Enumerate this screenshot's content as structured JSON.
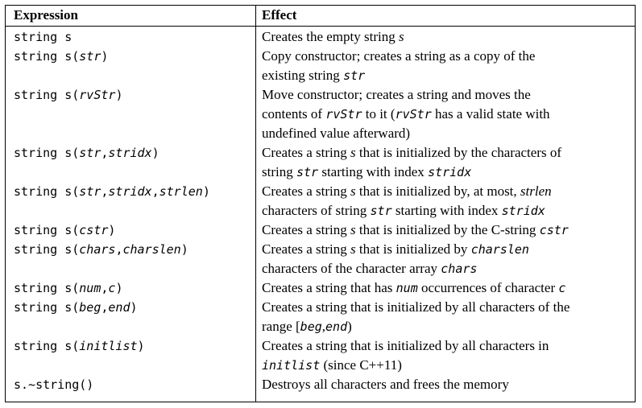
{
  "table": {
    "headers": {
      "expression": "Expression",
      "effect": "Effect"
    },
    "rows": [
      {
        "expression": [
          {
            "t": "string s",
            "s": "m"
          }
        ],
        "effect": [
          [
            {
              "t": "Creates the empty string ",
              "s": "r"
            },
            {
              "t": "s",
              "s": "i"
            }
          ]
        ]
      },
      {
        "expression": [
          {
            "t": "string s(",
            "s": "m"
          },
          {
            "t": "str",
            "s": "mi"
          },
          {
            "t": ")",
            "s": "m"
          }
        ],
        "effect": [
          [
            {
              "t": "Copy constructor; creates a string as a copy of the",
              "s": "r"
            }
          ],
          [
            {
              "t": "existing string ",
              "s": "r"
            },
            {
              "t": "str",
              "s": "mi"
            }
          ]
        ]
      },
      {
        "expression": [
          {
            "t": "string s(",
            "s": "m"
          },
          {
            "t": "rvStr",
            "s": "mi"
          },
          {
            "t": ")",
            "s": "m"
          }
        ],
        "effect": [
          [
            {
              "t": "Move constructor; creates a string and moves the",
              "s": "r"
            }
          ],
          [
            {
              "t": "contents of ",
              "s": "r"
            },
            {
              "t": "rvStr",
              "s": "mi"
            },
            {
              "t": " to it (",
              "s": "r"
            },
            {
              "t": "rvStr",
              "s": "mi"
            },
            {
              "t": " has a valid state with",
              "s": "r"
            }
          ],
          [
            {
              "t": "undefined value afterward)",
              "s": "r"
            }
          ]
        ]
      },
      {
        "expression": [
          {
            "t": "string s(",
            "s": "m"
          },
          {
            "t": "str",
            "s": "mi"
          },
          {
            "t": ",",
            "s": "m"
          },
          {
            "t": "stridx",
            "s": "mi"
          },
          {
            "t": ")",
            "s": "m"
          }
        ],
        "effect": [
          [
            {
              "t": "Creates a string ",
              "s": "r"
            },
            {
              "t": "s",
              "s": "i"
            },
            {
              "t": " that is initialized by the characters of",
              "s": "r"
            }
          ],
          [
            {
              "t": "string ",
              "s": "r"
            },
            {
              "t": "str",
              "s": "mi"
            },
            {
              "t": " starting with index ",
              "s": "r"
            },
            {
              "t": "stridx",
              "s": "mi"
            }
          ]
        ]
      },
      {
        "expression": [
          {
            "t": "string s(",
            "s": "m"
          },
          {
            "t": "str",
            "s": "mi"
          },
          {
            "t": ",",
            "s": "m"
          },
          {
            "t": "stridx",
            "s": "mi"
          },
          {
            "t": ",",
            "s": "m"
          },
          {
            "t": "strlen",
            "s": "mi"
          },
          {
            "t": ")",
            "s": "m"
          }
        ],
        "effect": [
          [
            {
              "t": "Creates a string ",
              "s": "r"
            },
            {
              "t": "s",
              "s": "i"
            },
            {
              "t": " that is initialized by, at most, ",
              "s": "r"
            },
            {
              "t": "strlen",
              "s": "i"
            }
          ],
          [
            {
              "t": "characters of string ",
              "s": "r"
            },
            {
              "t": "str",
              "s": "mi"
            },
            {
              "t": " starting with index ",
              "s": "r"
            },
            {
              "t": "stridx",
              "s": "mi"
            }
          ]
        ]
      },
      {
        "expression": [
          {
            "t": "string s(",
            "s": "m"
          },
          {
            "t": "cstr",
            "s": "mi"
          },
          {
            "t": ")",
            "s": "m"
          }
        ],
        "effect": [
          [
            {
              "t": "Creates a string ",
              "s": "r"
            },
            {
              "t": "s",
              "s": "i"
            },
            {
              "t": " that is initialized by the C-string ",
              "s": "r"
            },
            {
              "t": "cstr",
              "s": "mi"
            }
          ]
        ]
      },
      {
        "expression": [
          {
            "t": "string s(",
            "s": "m"
          },
          {
            "t": "chars",
            "s": "mi"
          },
          {
            "t": ",",
            "s": "m"
          },
          {
            "t": "charslen",
            "s": "mi"
          },
          {
            "t": ")",
            "s": "m"
          }
        ],
        "effect": [
          [
            {
              "t": "Creates a string ",
              "s": "r"
            },
            {
              "t": "s",
              "s": "i"
            },
            {
              "t": " that is initialized by ",
              "s": "r"
            },
            {
              "t": "charslen",
              "s": "mi"
            }
          ],
          [
            {
              "t": "characters of the character array ",
              "s": "r"
            },
            {
              "t": "chars",
              "s": "mi"
            }
          ]
        ]
      },
      {
        "expression": [
          {
            "t": "string s(",
            "s": "m"
          },
          {
            "t": "num",
            "s": "mi"
          },
          {
            "t": ",",
            "s": "m"
          },
          {
            "t": "c",
            "s": "mi"
          },
          {
            "t": ")",
            "s": "m"
          }
        ],
        "effect": [
          [
            {
              "t": "Creates a string that has ",
              "s": "r"
            },
            {
              "t": "num",
              "s": "mi"
            },
            {
              "t": " occurrences of character ",
              "s": "r"
            },
            {
              "t": "c",
              "s": "mi"
            }
          ]
        ]
      },
      {
        "expression": [
          {
            "t": "string s(",
            "s": "m"
          },
          {
            "t": "beg",
            "s": "mi"
          },
          {
            "t": ",",
            "s": "m"
          },
          {
            "t": "end",
            "s": "mi"
          },
          {
            "t": ")",
            "s": "m"
          }
        ],
        "effect": [
          [
            {
              "t": "Creates a string that is initialized by all characters of the",
              "s": "r"
            }
          ],
          [
            {
              "t": "range [",
              "s": "r"
            },
            {
              "t": "beg",
              "s": "mi"
            },
            {
              "t": ",",
              "s": "r"
            },
            {
              "t": "end",
              "s": "mi"
            },
            {
              "t": ")",
              "s": "r"
            }
          ]
        ]
      },
      {
        "expression": [
          {
            "t": "string s(",
            "s": "m"
          },
          {
            "t": "initlist",
            "s": "mi"
          },
          {
            "t": ")",
            "s": "m"
          }
        ],
        "effect": [
          [
            {
              "t": "Creates a string that is initialized by all characters in",
              "s": "r"
            }
          ],
          [
            {
              "t": "initlist",
              "s": "mi"
            },
            {
              "t": " (since C++11)",
              "s": "r"
            }
          ]
        ]
      },
      {
        "expression": [
          {
            "t": "s.~string()",
            "s": "m"
          }
        ],
        "effect": [
          [
            {
              "t": "Destroys all characters and frees the memory",
              "s": "r"
            }
          ]
        ]
      }
    ]
  }
}
